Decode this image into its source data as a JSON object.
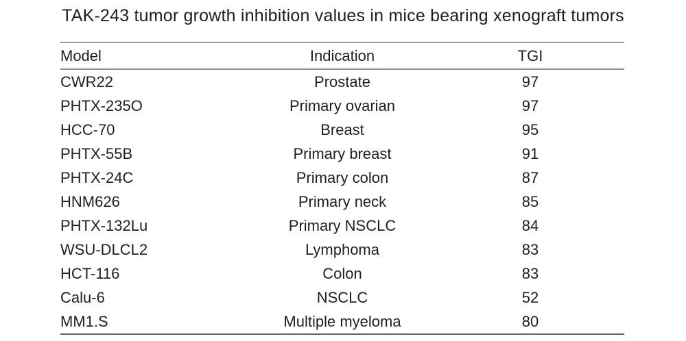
{
  "chart_data": {
    "type": "table",
    "title": "TAK-243 tumor growth inhibition values in mice bearing xenograft tumors",
    "columns": [
      "Model",
      "Indication",
      "TGI"
    ],
    "rows": [
      [
        "CWR22",
        "Prostate",
        97
      ],
      [
        "PHTX-235O",
        "Primary ovarian",
        97
      ],
      [
        "HCC-70",
        "Breast",
        95
      ],
      [
        "PHTX-55B",
        "Primary breast",
        91
      ],
      [
        "PHTX-24C",
        "Primary colon",
        87
      ],
      [
        "HNM626",
        "Primary neck",
        85
      ],
      [
        "PHTX-132Lu",
        "Primary NSCLC",
        84
      ],
      [
        "WSU-DLCL2",
        "Lymphoma",
        83
      ],
      [
        "HCT-116",
        "Colon",
        83
      ],
      [
        "Calu-6",
        "NSCLC",
        52
      ],
      [
        "MM1.S",
        "Multiple myeloma",
        80
      ]
    ],
    "layout": {
      "column_alignment": [
        "left",
        "center",
        "center"
      ],
      "grid": "horizontal rules only: above header, below header, below last row",
      "legend": "none"
    }
  },
  "colors": {
    "background": "#ffffff",
    "text": "#1f1f1f",
    "rule_top": "#9a9a9a",
    "rule_header": "#8d8d8d",
    "rule_bottom": "#636363"
  }
}
